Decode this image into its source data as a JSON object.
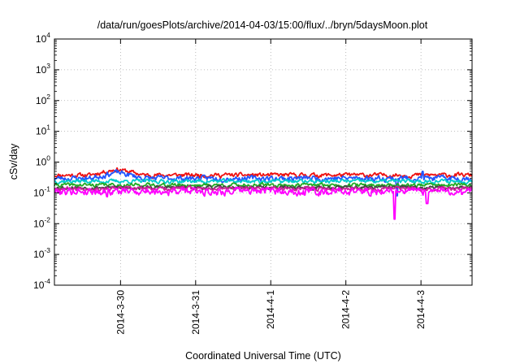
{
  "chart_data": {
    "type": "line",
    "title": "/data/run/goesPlots/archive/2014-04-03/15:00/flux/../bryn/5daysMoon.plot",
    "xlabel": "Coordinated Universal Time (UTC)",
    "ylabel": "cSv/day",
    "yscale": "log",
    "ylim": [
      0.0001,
      10000
    ],
    "xlim": [
      -0.88,
      4.68
    ],
    "grid": true,
    "y_ticks": [
      {
        "mantissa": "10",
        "exp": "-4"
      },
      {
        "mantissa": "10",
        "exp": "-3"
      },
      {
        "mantissa": "10",
        "exp": "-2"
      },
      {
        "mantissa": "10",
        "exp": "-1"
      },
      {
        "mantissa": "10",
        "exp": "0"
      },
      {
        "mantissa": "10",
        "exp": "1"
      },
      {
        "mantissa": "10",
        "exp": "2"
      },
      {
        "mantissa": "10",
        "exp": "3"
      },
      {
        "mantissa": "10",
        "exp": "4"
      }
    ],
    "x_ticks": [
      "2014-3-30",
      "2014-3-31",
      "2014-4-1",
      "2014-4-2",
      "2014-4-3"
    ],
    "x_days": [
      0,
      1,
      2,
      3,
      4
    ],
    "series": [
      {
        "color": "#ee1111",
        "base": 0.38,
        "amp": 0.12,
        "seed": 11,
        "bumps": [
          {
            "at": -0.05,
            "width": 0.35,
            "factor": 1.55
          }
        ]
      },
      {
        "color": "#2255ff",
        "base": 0.3,
        "amp": 0.12,
        "seed": 23,
        "bumps": [
          {
            "at": -0.05,
            "width": 0.35,
            "factor": 1.55
          }
        ],
        "spikes": [
          {
            "at": 3.68,
            "value": 0.08
          },
          {
            "at": 4.02,
            "value": 0.5
          }
        ]
      },
      {
        "color": "#00cccc",
        "base": 0.24,
        "amp": 0.07,
        "seed": 37
      },
      {
        "color": "#22aa22",
        "base": 0.18,
        "amp": 0.05,
        "seed": 41
      },
      {
        "color": "#444444",
        "base": 0.15,
        "amp": 0.04,
        "seed": 53
      },
      {
        "color": "#cc2299",
        "base": 0.14,
        "amp": 0.04,
        "seed": 67
      },
      {
        "color": "#ff00ff",
        "base": 0.115,
        "amp": 0.06,
        "seed": 79,
        "dips": [
          {
            "at": -0.18,
            "value": 0.075
          },
          {
            "at": 1.2,
            "value": 0.085
          },
          {
            "at": 2.45,
            "value": 0.085
          },
          {
            "at": 3.65,
            "value": 0.014
          },
          {
            "at": 4.08,
            "value": 0.045
          },
          {
            "at": 4.55,
            "value": 0.09
          }
        ]
      }
    ]
  }
}
